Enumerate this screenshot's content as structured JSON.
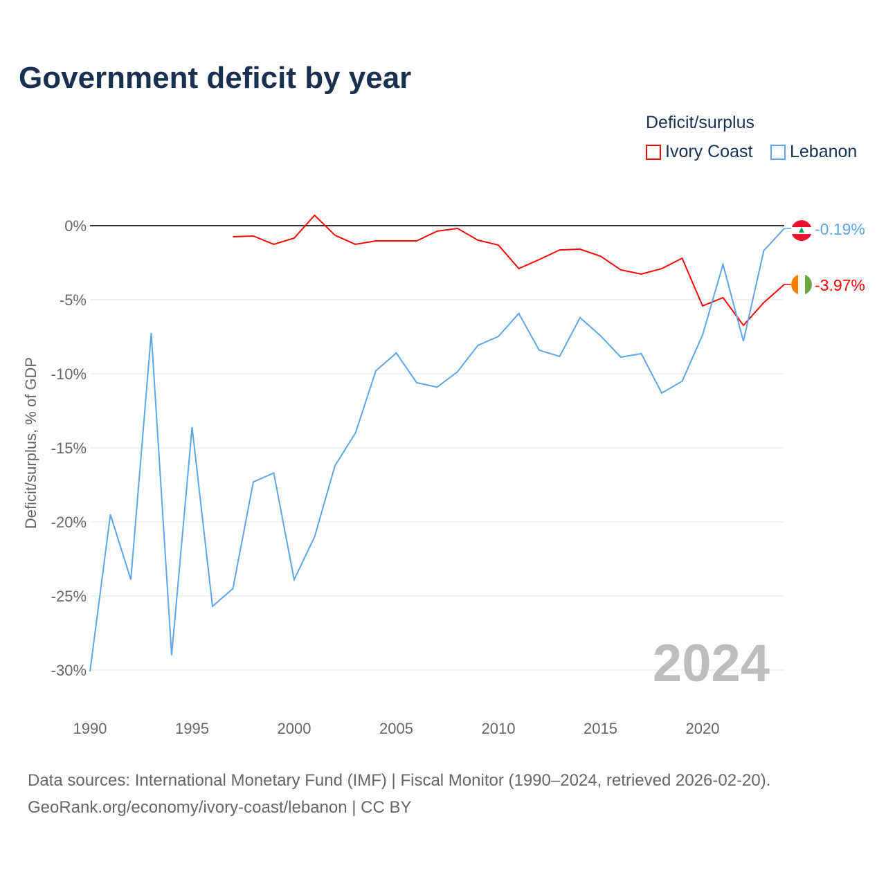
{
  "title": "Government deficit by year",
  "legend": {
    "title": "Deficit/surplus",
    "items": [
      {
        "name": "Ivory Coast",
        "color": "#ff0000"
      },
      {
        "name": "Lebanon",
        "color": "#5da5ea"
      }
    ]
  },
  "source": {
    "line1": "Data sources: International Monetary Fund (IMF) | Fiscal Monitor (1990–2024, retrieved 2026-02-20).",
    "line2": "GeoRank.org/economy/ivory-coast/lebanon | CC BY"
  },
  "chart_data": {
    "type": "line",
    "title": "Government deficit by year",
    "ylabel": "Deficit/surplus, % of GDP",
    "xlabel": "",
    "xlim": [
      1990,
      2024
    ],
    "ylim": [
      -30,
      0
    ],
    "x_ticks": [
      "1990",
      "1995",
      "2000",
      "2005",
      "2010",
      "2015",
      "2020"
    ],
    "y_ticks": [
      {
        "v": 0,
        "label": "0%"
      },
      {
        "v": -5,
        "label": "-5%"
      },
      {
        "v": -10,
        "label": "-10%"
      },
      {
        "v": -15,
        "label": "-15%"
      },
      {
        "v": -20,
        "label": "-20%"
      },
      {
        "v": -25,
        "label": "-25%"
      },
      {
        "v": -30,
        "label": "-30%"
      }
    ],
    "year_label": "2024",
    "series": [
      {
        "name": "Ivory Coast",
        "color": "#ff0000",
        "end_label": "-3.97%",
        "x": [
          1997,
          1998,
          1999,
          2000,
          2001,
          2002,
          2003,
          2004,
          2005,
          2006,
          2007,
          2008,
          2009,
          2010,
          2011,
          2012,
          2013,
          2014,
          2015,
          2016,
          2017,
          2018,
          2019,
          2020,
          2021,
          2022,
          2023,
          2024
        ],
        "values": [
          -0.75,
          -0.7,
          -1.26,
          -0.84,
          0.7,
          -0.65,
          -1.26,
          -1.03,
          -1.03,
          -1.03,
          -0.37,
          -0.19,
          -0.98,
          -1.31,
          -2.9,
          -2.29,
          -1.64,
          -1.59,
          -2.06,
          -2.99,
          -3.27,
          -2.9,
          -2.2,
          -5.42,
          -4.86,
          -6.73,
          -5.19,
          -3.97
        ]
      },
      {
        "name": "Lebanon",
        "color": "#5da5ea",
        "end_label": "-0.19%",
        "x": [
          1990,
          1991,
          1992,
          1993,
          1994,
          1995,
          1996,
          1997,
          1998,
          1999,
          2000,
          2001,
          2002,
          2003,
          2004,
          2005,
          2006,
          2007,
          2008,
          2009,
          2010,
          2011,
          2012,
          2013,
          2014,
          2015,
          2016,
          2017,
          2018,
          2019,
          2020,
          2021,
          2022,
          2023,
          2024
        ],
        "values": [
          -30.1,
          -19.5,
          -23.9,
          -7.24,
          -29.0,
          -13.6,
          -25.7,
          -24.5,
          -17.3,
          -16.7,
          -23.9,
          -21.0,
          -16.2,
          -14.0,
          -9.8,
          -8.6,
          -10.6,
          -10.9,
          -9.86,
          -8.08,
          -7.48,
          -5.93,
          -8.41,
          -8.83,
          -6.21,
          -7.43,
          -8.88,
          -8.64,
          -11.3,
          -10.5,
          -7.38,
          -2.62,
          -7.8,
          -1.68,
          -0.19
        ]
      }
    ]
  }
}
